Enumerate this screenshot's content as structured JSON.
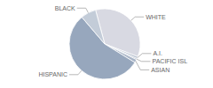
{
  "chart_data": {
    "type": "pie",
    "categories": [
      "WHITE",
      "A.I.",
      "PACIFIC ISL",
      "ASIAN",
      "HISPANIC",
      "BLACK"
    ],
    "values": [
      35,
      1,
      0.5,
      1.5,
      55,
      7
    ],
    "colors": [
      "#d8d9e2",
      "#b9c2d0",
      "#8e9cb2",
      "#a9b5c7",
      "#97a7bd",
      "#c3ccd8"
    ]
  }
}
